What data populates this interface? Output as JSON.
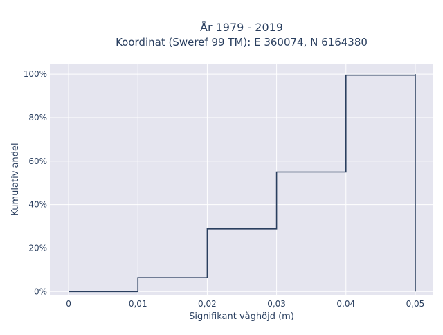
{
  "chart_data": {
    "type": "line",
    "line_shape": "step",
    "title": "År 1979 - 2019",
    "subtitle": "Koordinat (Sweref 99 TM): E 360074, N 6164380",
    "xlabel": "Signifikant våghöjd (m)",
    "ylabel": "Kumulativ andel",
    "xlim": [
      -0.0027,
      0.0525
    ],
    "ylim": [
      -0.015,
      1.045
    ],
    "x_ticks": [
      0,
      0.01,
      0.02,
      0.03,
      0.04,
      0.05
    ],
    "x_tick_labels": [
      "0",
      "0,01",
      "0,02",
      "0,03",
      "0,04",
      "0,05"
    ],
    "y_ticks": [
      0,
      0.2,
      0.4,
      0.6,
      0.8,
      1.0
    ],
    "y_tick_labels": [
      "0%",
      "20%",
      "40%",
      "60%",
      "80%",
      "100%"
    ],
    "grid": true,
    "legend": false,
    "colors": {
      "background": "#e5e5ef",
      "line": "#2a3f5f",
      "grid": "#ffffff"
    },
    "series": [
      {
        "x": [
          0,
          0.01,
          0.02,
          0.03,
          0.04,
          0.05,
          0.05
        ],
        "y": [
          0,
          0.064,
          0.288,
          0.55,
          0.995,
          1.0,
          0
        ]
      }
    ]
  }
}
